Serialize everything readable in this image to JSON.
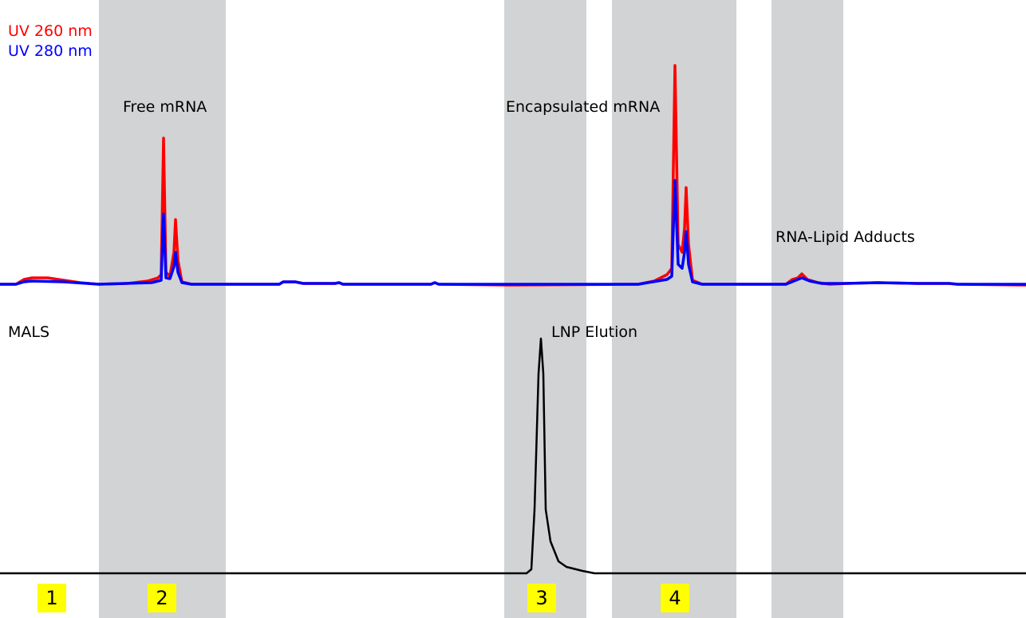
{
  "chart_data": {
    "type": "line",
    "title": "",
    "xlabel": "",
    "ylabel": "",
    "xlim": [
      0,
      128.6
    ],
    "grid": false,
    "legend_placement": "top-left",
    "legend": [
      "UV 260 nm",
      "UV 280 nm"
    ],
    "shaded_regions": [
      {
        "x": [
          12.4,
          28.3
        ],
        "label": "2"
      },
      {
        "x": [
          63.2,
          73.5
        ],
        "label": "3"
      },
      {
        "x": [
          76.7,
          92.3
        ],
        "label": "4"
      },
      {
        "x": [
          96.7,
          105.7
        ],
        "label": ""
      }
    ],
    "region_numbers": [
      {
        "label": "1",
        "x": 6.5
      },
      {
        "label": "2",
        "x": 20.3
      },
      {
        "label": "3",
        "x": 67.9
      },
      {
        "label": "4",
        "x": 84.6
      }
    ],
    "annotations": [
      "Free mRNA",
      "Encapsulated mRNA",
      "RNA-Lipid Adducts",
      "MALS",
      "LNP Elution"
    ],
    "panels": [
      {
        "name": "UV",
        "ylim": [
          -10,
          300
        ],
        "series": [
          {
            "name": "UV 260 nm",
            "color": "#ff0000",
            "x": [
              0,
              2,
              3,
              4,
              6,
              8,
              10,
              12.4,
              16,
              18.5,
              19.8,
              20.2,
              20.5,
              20.8,
              21.3,
              21.8,
              22,
              22.3,
              22.8,
              24,
              35,
              35.5,
              37,
              38,
              42,
              42.5,
              43,
              54,
              54.5,
              55,
              64,
              80,
              82,
              83.6,
              84.2,
              84.6,
              85,
              85.5,
              85.8,
              86,
              86.3,
              86.8,
              88,
              98.5,
              99.3,
              100,
              100.5,
              101.2,
              102.5,
              104,
              106,
              110,
              115,
              119,
              120,
              128.6
            ],
            "y": [
              0,
              0,
              6,
              8,
              8,
              5,
              2,
              0,
              1,
              4,
              8,
              12,
              183,
              15,
              10,
              40,
              81,
              30,
              3,
              0,
              0,
              3,
              3,
              1,
              1,
              2,
              0,
              0,
              2,
              0,
              -1,
              0,
              4,
              12,
              20,
              274,
              50,
              40,
              70,
              121,
              50,
              5,
              0,
              0,
              6,
              8,
              13,
              6,
              2,
              0,
              1,
              2,
              1,
              1,
              0,
              -1
            ]
          },
          {
            "name": "UV 280 nm",
            "color": "#0000ff",
            "x": [
              0,
              2,
              3,
              4,
              8,
              12.4,
              19,
              20.2,
              20.5,
              20.8,
              21.3,
              21.8,
              22,
              22.3,
              22.8,
              24,
              35,
              35.5,
              37,
              38,
              42,
              42.5,
              43,
              54,
              54.5,
              55,
              80,
              83.6,
              84.2,
              84.6,
              85,
              85.5,
              85.8,
              86,
              86.3,
              86.8,
              88,
              98.5,
              99.5,
              100.5,
              101.5,
              103,
              106,
              110,
              115,
              119,
              120,
              128.6
            ],
            "y": [
              0,
              0,
              3,
              4,
              3,
              0,
              2,
              5,
              88,
              8,
              7,
              22,
              40,
              15,
              2,
              0,
              0,
              3,
              3,
              1,
              1,
              2,
              0,
              0,
              2,
              0,
              0,
              6,
              10,
              130,
              25,
              20,
              40,
              66,
              25,
              3,
              0,
              0,
              4,
              8,
              4,
              1,
              1,
              2,
              1,
              1,
              0,
              0
            ]
          }
        ]
      },
      {
        "name": "MALS",
        "ylim": [
          -10,
          300
        ],
        "series": [
          {
            "name": "MALS",
            "color": "#000000",
            "x": [
              0,
              66,
              66.6,
              67,
              67.5,
              67.8,
              68.1,
              68.4,
              69,
              70,
              71,
              73,
              74.5,
              128.6
            ],
            "y": [
              0,
              0,
              5,
              80,
              250,
              294,
              250,
              80,
              40,
              15,
              8,
              3,
              0,
              0
            ]
          }
        ]
      }
    ]
  }
}
